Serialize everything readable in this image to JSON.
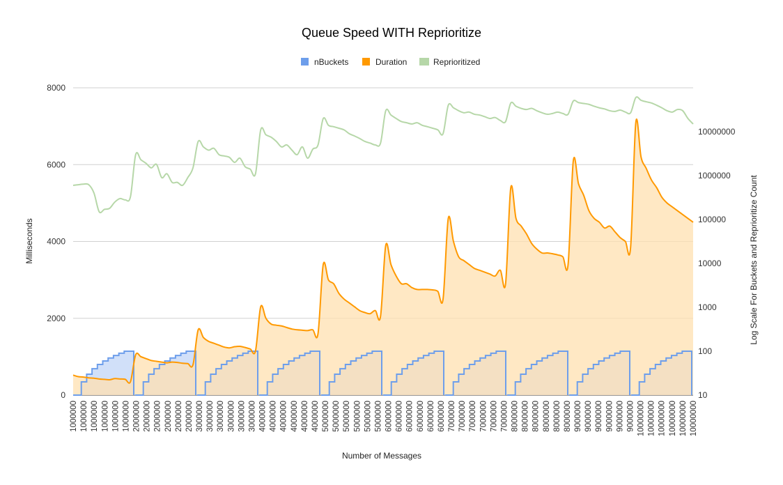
{
  "chart_data": {
    "type": "area",
    "title": "Queue Speed WITH Reprioritize",
    "xlabel": "Number of Messages",
    "ylabel_left": "Milliseconds",
    "ylabel_right": "Log Scale For Buckets and Reprioritize Count",
    "ylim_left": [
      0,
      8000
    ],
    "yticks_left": [
      "0",
      "2000",
      "4000",
      "6000",
      "8000"
    ],
    "right_axis_scale": "log",
    "ylim_right": [
      10,
      100000000
    ],
    "yticks_right": [
      "10",
      "100",
      "1000",
      "10000",
      "100000",
      "1000000",
      "10000000"
    ],
    "grid": true,
    "legend_position": "top",
    "x_ticks": [
      "1000000",
      "1000000",
      "1000000",
      "1000000",
      "1000000",
      "1000000",
      "2000000",
      "2000000",
      "2000000",
      "2000000",
      "2000000",
      "2000000",
      "3000000",
      "3000000",
      "3000000",
      "3000000",
      "3000000",
      "3000000",
      "4000000",
      "4000000",
      "4000000",
      "4000000",
      "4000000",
      "4000000",
      "5000000",
      "5000000",
      "5000000",
      "5000000",
      "5000000",
      "5000000",
      "6000000",
      "6000000",
      "6000000",
      "6000000",
      "6000000",
      "6000000",
      "7000000",
      "7000000",
      "7000000",
      "7000000",
      "7000000",
      "7000000",
      "8000000",
      "8000000",
      "8000000",
      "8000000",
      "8000000",
      "8000000",
      "9000000",
      "9000000",
      "9000000",
      "9000000",
      "9000000",
      "9000000",
      "10000000",
      "10000000",
      "10000000",
      "10000000",
      "10000000",
      "10000000"
    ],
    "series": [
      {
        "name": "nBuckets",
        "color": "#6d9eeb",
        "fill": "#c9daf8",
        "axis": "right",
        "values_per_group": [
          10,
          20,
          30,
          40,
          50,
          60,
          70,
          80,
          90,
          100
        ],
        "groups": 10
      },
      {
        "name": "Duration",
        "color": "#ff9900",
        "fill": "#ffe0b0",
        "axis": "left",
        "values": [
          520,
          480,
          470,
          450,
          440,
          420,
          410,
          400,
          430,
          420,
          410,
          350,
          1050,
          1000,
          950,
          900,
          880,
          860,
          840,
          860,
          850,
          830,
          820,
          790,
          1700,
          1500,
          1400,
          1350,
          1300,
          1250,
          1230,
          1260,
          1270,
          1240,
          1200,
          1150,
          2300,
          2000,
          1850,
          1820,
          1800,
          1760,
          1720,
          1700,
          1690,
          1680,
          1700,
          1600,
          3400,
          3000,
          2900,
          2650,
          2500,
          2400,
          2300,
          2200,
          2150,
          2120,
          2200,
          2050,
          3900,
          3400,
          3100,
          2900,
          2900,
          2800,
          2750,
          2750,
          2750,
          2740,
          2700,
          2500,
          4600,
          4000,
          3600,
          3500,
          3400,
          3300,
          3250,
          3200,
          3150,
          3100,
          3250,
          2900,
          5400,
          4600,
          4400,
          4200,
          3950,
          3800,
          3700,
          3700,
          3680,
          3650,
          3600,
          3400,
          6100,
          5500,
          5200,
          4800,
          4600,
          4500,
          4350,
          4400,
          4250,
          4100,
          4000,
          3850,
          7100,
          6200,
          5900,
          5600,
          5400,
          5150,
          5000,
          4900,
          4800,
          4700,
          4600,
          4500
        ]
      },
      {
        "name": "Reprioritized",
        "color": "#b6d7a8",
        "axis": "right",
        "values": [
          600000,
          620000,
          640000,
          620000,
          400000,
          150000,
          170000,
          180000,
          250000,
          300000,
          280000,
          330000,
          3000000,
          2300000,
          1900000,
          1500000,
          1800000,
          900000,
          1100000,
          700000,
          700000,
          600000,
          900000,
          1500000,
          6000000,
          4500000,
          3800000,
          4200000,
          3000000,
          2800000,
          2600000,
          2000000,
          2500000,
          1600000,
          1400000,
          1100000,
          11000000,
          8500000,
          7500000,
          6000000,
          4500000,
          5000000,
          3800000,
          3000000,
          4500000,
          2500000,
          4000000,
          5000000,
          20000000,
          14000000,
          13000000,
          12000000,
          11000000,
          9000000,
          8000000,
          7000000,
          6000000,
          5500000,
          5000000,
          5500000,
          30000000,
          24000000,
          20000000,
          17000000,
          16000000,
          15000000,
          16000000,
          14000000,
          13000000,
          12000000,
          11000000,
          9000000,
          40000000,
          35000000,
          30000000,
          27000000,
          28000000,
          25000000,
          24000000,
          22000000,
          20000000,
          21000000,
          18000000,
          17000000,
          45000000,
          38000000,
          34000000,
          32000000,
          34000000,
          30000000,
          27000000,
          25000000,
          26000000,
          28000000,
          26000000,
          25000000,
          50000000,
          46000000,
          44000000,
          42000000,
          38000000,
          35000000,
          33000000,
          30000000,
          29000000,
          31000000,
          28000000,
          27000000,
          60000000,
          52000000,
          48000000,
          45000000,
          40000000,
          35000000,
          30000000,
          28000000,
          32000000,
          30000000,
          20000000,
          15000000
        ]
      }
    ]
  }
}
